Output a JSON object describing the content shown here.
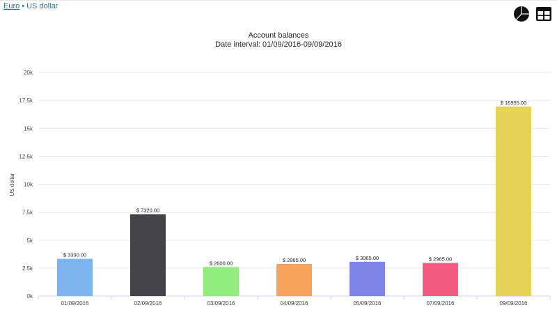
{
  "breadcrumb": {
    "link": "Euro",
    "separator": "•",
    "current": "US dollar"
  },
  "icons": {
    "pie": "pie-chart-icon",
    "table": "table-icon"
  },
  "chart_data": {
    "type": "bar",
    "title": "Account balances",
    "subtitle": "Date interval: 01/09/2016-09/09/2016",
    "ylabel": "US dollar",
    "xlabel": "",
    "ylim": [
      0,
      20000
    ],
    "yticks": [
      0,
      2500,
      5000,
      7500,
      10000,
      12500,
      15000,
      17500,
      20000
    ],
    "ytick_labels": [
      "0k",
      "2.5k",
      "5k",
      "7.5k",
      "10k",
      "12.5k",
      "15k",
      "17.5k",
      "20k"
    ],
    "categories": [
      "01/09/2016",
      "02/09/2016",
      "03/09/2016",
      "04/09/2016",
      "05/09/2016",
      "07/09/2016",
      "09/09/2016"
    ],
    "values": [
      3330,
      7320,
      2600,
      2865,
      3065,
      2965,
      16955
    ],
    "labels": [
      "$ 3330.00",
      "$ 7320.00",
      "$ 2600.00",
      "$ 2865.00",
      "$ 3065.00",
      "$ 2965.00",
      "$ 16955.00"
    ],
    "colors": [
      "#7cb5ec",
      "#434348",
      "#90ed7d",
      "#f7a35c",
      "#8085e9",
      "#f15c80",
      "#e4d354"
    ],
    "grid": true,
    "legend": "none"
  }
}
